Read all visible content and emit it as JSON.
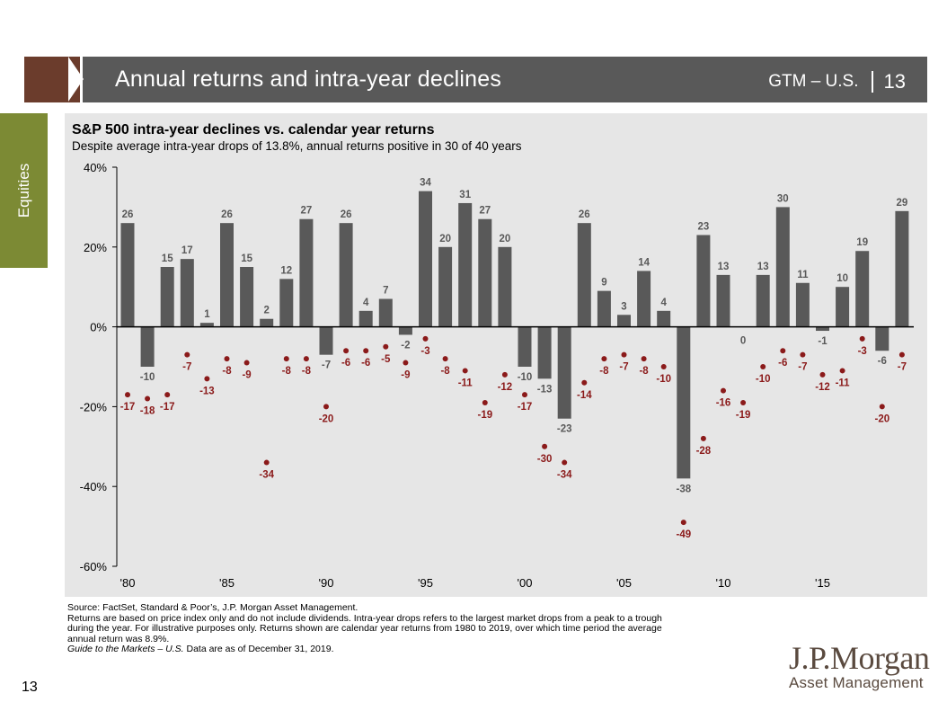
{
  "header": {
    "title": "Annual returns and intra-year declines",
    "region": "GTM – U.S.",
    "page": "13"
  },
  "side_tab": {
    "label": "Equities"
  },
  "colors": {
    "bar": "#595959",
    "decline": "#8b1a1a",
    "panel": "#e6e6e6",
    "accent": "#6b3c2c",
    "tab": "#7c8a34"
  },
  "chart_data": {
    "type": "bar",
    "title": "S&P 500 intra-year declines vs. calendar year returns",
    "subtitle": "Despite average intra-year drops of 13.8%, annual returns positive in 30 of 40 years",
    "years": [
      1980,
      1981,
      1982,
      1983,
      1984,
      1985,
      1986,
      1987,
      1988,
      1989,
      1990,
      1991,
      1992,
      1993,
      1994,
      1995,
      1996,
      1997,
      1998,
      1999,
      2000,
      2001,
      2002,
      2003,
      2004,
      2005,
      2006,
      2007,
      2008,
      2009,
      2010,
      2011,
      2012,
      2013,
      2014,
      2015,
      2016,
      2017,
      2018,
      2019
    ],
    "x_tick_labels": [
      "'80",
      "'85",
      "'90",
      "'95",
      "'00",
      "'05",
      "'10",
      "'15"
    ],
    "x_tick_years": [
      1980,
      1985,
      1990,
      1995,
      2000,
      2005,
      2010,
      2015
    ],
    "y_tick_labels": [
      "40%",
      "20%",
      "0%",
      "-20%",
      "-40%",
      "-60%"
    ],
    "y_ticks": [
      40,
      20,
      0,
      -20,
      -40,
      -60
    ],
    "ylim": [
      -60,
      40
    ],
    "series": [
      {
        "name": "Calendar year return",
        "mark": "bar",
        "values": [
          26,
          -10,
          15,
          17,
          1,
          26,
          15,
          2,
          12,
          27,
          -7,
          26,
          4,
          7,
          -2,
          34,
          20,
          31,
          27,
          20,
          -10,
          -13,
          -23,
          26,
          9,
          3,
          14,
          4,
          -38,
          23,
          13,
          0,
          13,
          30,
          11,
          -1,
          10,
          19,
          -6,
          29
        ]
      },
      {
        "name": "Intra-year decline",
        "mark": "point",
        "values": [
          -17,
          -18,
          -17,
          -7,
          -13,
          -8,
          -9,
          -34,
          -8,
          -8,
          -20,
          -6,
          -6,
          -5,
          -9,
          -3,
          -8,
          -11,
          -19,
          -12,
          -17,
          -30,
          -34,
          -14,
          -8,
          -7,
          -8,
          -10,
          -49,
          -28,
          -16,
          -19,
          -10,
          -6,
          -7,
          -12,
          -11,
          -3,
          -20,
          -7
        ]
      }
    ]
  },
  "footnotes": {
    "source": "Source: FactSet, Standard & Poor’s, J.P. Morgan Asset Management.",
    "line1": "Returns are based on price index only and do not include dividends. Intra-year drops refers to the largest market drops from a peak to a trough",
    "line2": "during the year. For illustrative purposes only. Returns shown are calendar year returns from 1980 to 2019, over which time period the average",
    "line3": "annual return was 8.9%.",
    "guide_italic": "Guide to the Markets – U.S.",
    "guide_rest": " Data are as of December 31, 2019."
  },
  "logo": {
    "main": "J.P.Morgan",
    "sub": "Asset Management"
  },
  "page_number": "13"
}
